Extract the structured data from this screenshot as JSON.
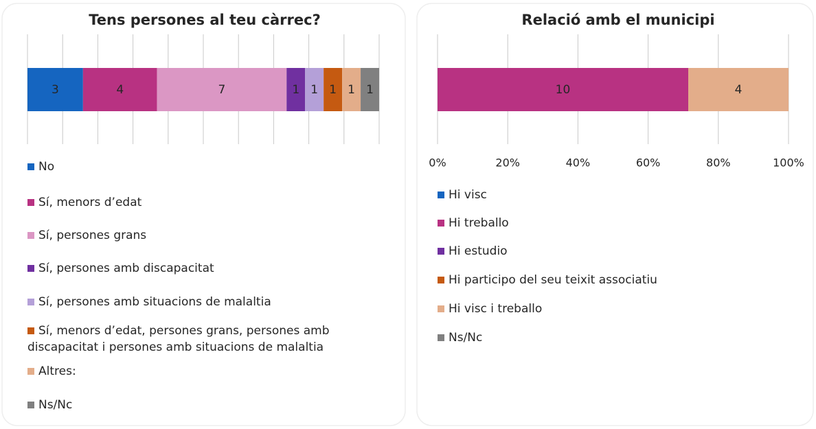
{
  "chart_data": [
    {
      "type": "stacked-bar-100",
      "title": "Tens persones al teu càrrec?",
      "xlim": [
        0,
        100
      ],
      "xticks": [
        0,
        10,
        20,
        30,
        40,
        50,
        60,
        70,
        80,
        90,
        100
      ],
      "tick_labels": false,
      "grid": true,
      "series": [
        {
          "name": "No",
          "color": "#1565c0",
          "values": [
            3
          ]
        },
        {
          "name": "Sí, menors d’edat",
          "color": "#b83282",
          "values": [
            4
          ]
        },
        {
          "name": "Sí, persones grans",
          "color": "#db97c4",
          "values": [
            7
          ]
        },
        {
          "name": "Sí, persones amb discapacitat",
          "color": "#7030a0",
          "values": [
            1
          ]
        },
        {
          "name": "Sí, persones amb situacions de malaltia",
          "color": "#b4a0d8",
          "values": [
            1
          ]
        },
        {
          "name": "Sí, menors d’edat, persones grans, persones amb discapacitat i persones amb situacions de malaltia",
          "color": "#c55a11",
          "values": [
            1
          ]
        },
        {
          "name": "Altres:",
          "color": "#e3ad8a",
          "values": [
            1
          ]
        },
        {
          "name": "Ns/Nc",
          "color": "#808080",
          "values": [
            1
          ]
        }
      ]
    },
    {
      "type": "stacked-bar-100",
      "title": "Relació amb el municipi",
      "xlim": [
        0,
        100
      ],
      "xticks": [
        {
          "value": 0,
          "label": "0%"
        },
        {
          "value": 20,
          "label": "20%"
        },
        {
          "value": 40,
          "label": "40%"
        },
        {
          "value": 60,
          "label": "60%"
        },
        {
          "value": 80,
          "label": "80%"
        },
        {
          "value": 100,
          "label": "100%"
        }
      ],
      "tick_labels": true,
      "grid": true,
      "series": [
        {
          "name": "Hi visc",
          "color": "#1565c0",
          "values": [
            0
          ]
        },
        {
          "name": "Hi treballo",
          "color": "#b83282",
          "values": [
            10
          ]
        },
        {
          "name": "Hi estudio",
          "color": "#7030a0",
          "values": [
            0
          ]
        },
        {
          "name": "Hi participo del seu teixit associatiu",
          "color": "#c55a11",
          "values": [
            0
          ]
        },
        {
          "name": "Hi visc i treballo",
          "color": "#e3ad8a",
          "values": [
            4
          ]
        },
        {
          "name": "Ns/Nc",
          "color": "#808080",
          "values": [
            0
          ]
        }
      ]
    }
  ]
}
